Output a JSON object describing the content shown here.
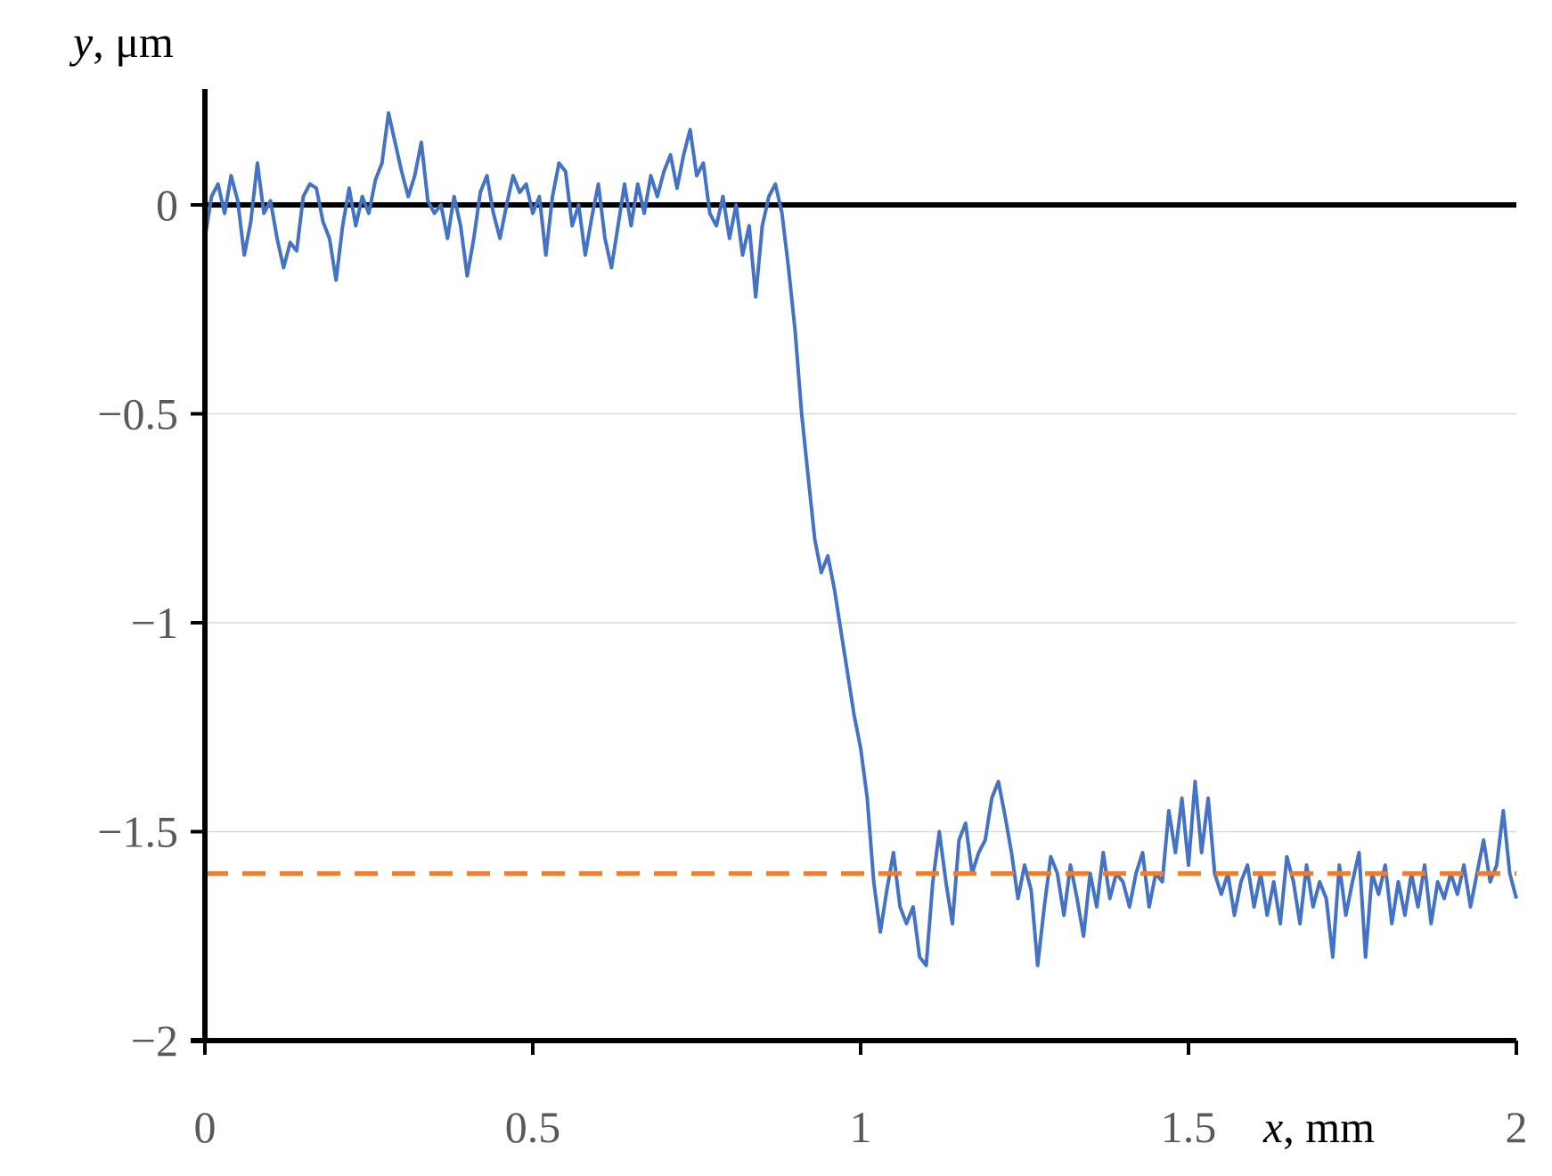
{
  "chart_data": {
    "type": "line",
    "xlabel": {
      "var": "x",
      "unit": ", mm"
    },
    "ylabel": {
      "var": "y",
      "unit": ", μm"
    },
    "xlim": [
      0,
      2
    ],
    "ylim": [
      -2,
      0.3
    ],
    "x_ticks": [
      {
        "value": 0,
        "label": "0"
      },
      {
        "value": 0.5,
        "label": "0.5"
      },
      {
        "value": 1,
        "label": "1"
      },
      {
        "value": 1.5,
        "label": "1.5"
      },
      {
        "value": 2,
        "label": "2"
      }
    ],
    "y_ticks": [
      {
        "value": 0,
        "label": "0"
      },
      {
        "value": -0.5,
        "label": "−0.5"
      },
      {
        "value": -1,
        "label": "−1"
      },
      {
        "value": -1.5,
        "label": "−1.5"
      },
      {
        "value": -2,
        "label": "−2"
      }
    ],
    "grid": {
      "horizontal": true,
      "values": [
        -0.5,
        -1,
        -1.5
      ],
      "color": "#d9d9d9"
    },
    "reference_lines": [
      {
        "y": 0,
        "style": "solid",
        "color": "#000000"
      },
      {
        "y": -1.6,
        "style": "dashed",
        "color": "#ed7d31"
      }
    ],
    "series": [
      {
        "color": "#4472c4",
        "points": [
          [
            0,
            -0.08
          ],
          [
            0.01,
            0.02
          ],
          [
            0.02,
            0.05
          ],
          [
            0.03,
            -0.02
          ],
          [
            0.04,
            0.07
          ],
          [
            0.05,
            0.01
          ],
          [
            0.06,
            -0.12
          ],
          [
            0.07,
            -0.04
          ],
          [
            0.08,
            0.1
          ],
          [
            0.09,
            -0.02
          ],
          [
            0.1,
            0.01
          ],
          [
            0.11,
            -0.08
          ],
          [
            0.12,
            -0.15
          ],
          [
            0.13,
            -0.09
          ],
          [
            0.14,
            -0.11
          ],
          [
            0.15,
            0.02
          ],
          [
            0.16,
            0.05
          ],
          [
            0.17,
            0.04
          ],
          [
            0.18,
            -0.04
          ],
          [
            0.19,
            -0.08
          ],
          [
            0.2,
            -0.18
          ],
          [
            0.21,
            -0.05
          ],
          [
            0.22,
            0.04
          ],
          [
            0.23,
            -0.05
          ],
          [
            0.24,
            0.02
          ],
          [
            0.25,
            -0.02
          ],
          [
            0.26,
            0.06
          ],
          [
            0.27,
            0.1
          ],
          [
            0.28,
            0.22
          ],
          [
            0.29,
            0.15
          ],
          [
            0.3,
            0.08
          ],
          [
            0.31,
            0.02
          ],
          [
            0.32,
            0.07
          ],
          [
            0.33,
            0.15
          ],
          [
            0.34,
            0.01
          ],
          [
            0.35,
            -0.02
          ],
          [
            0.36,
            0.0
          ],
          [
            0.37,
            -0.08
          ],
          [
            0.38,
            0.02
          ],
          [
            0.39,
            -0.05
          ],
          [
            0.4,
            -0.17
          ],
          [
            0.41,
            -0.08
          ],
          [
            0.42,
            0.03
          ],
          [
            0.43,
            0.07
          ],
          [
            0.44,
            -0.02
          ],
          [
            0.45,
            -0.08
          ],
          [
            0.46,
            0.0
          ],
          [
            0.47,
            0.07
          ],
          [
            0.48,
            0.03
          ],
          [
            0.49,
            0.05
          ],
          [
            0.5,
            -0.02
          ],
          [
            0.51,
            0.02
          ],
          [
            0.52,
            -0.12
          ],
          [
            0.53,
            0.02
          ],
          [
            0.54,
            0.1
          ],
          [
            0.55,
            0.08
          ],
          [
            0.56,
            -0.05
          ],
          [
            0.57,
            0.0
          ],
          [
            0.58,
            -0.12
          ],
          [
            0.59,
            -0.03
          ],
          [
            0.6,
            0.05
          ],
          [
            0.61,
            -0.08
          ],
          [
            0.62,
            -0.15
          ],
          [
            0.63,
            -0.05
          ],
          [
            0.64,
            0.05
          ],
          [
            0.65,
            -0.05
          ],
          [
            0.66,
            0.05
          ],
          [
            0.67,
            -0.02
          ],
          [
            0.68,
            0.07
          ],
          [
            0.69,
            0.02
          ],
          [
            0.7,
            0.08
          ],
          [
            0.71,
            0.12
          ],
          [
            0.72,
            0.04
          ],
          [
            0.73,
            0.12
          ],
          [
            0.74,
            0.18
          ],
          [
            0.75,
            0.07
          ],
          [
            0.76,
            0.1
          ],
          [
            0.77,
            -0.02
          ],
          [
            0.78,
            -0.05
          ],
          [
            0.79,
            0.02
          ],
          [
            0.8,
            -0.08
          ],
          [
            0.81,
            0.0
          ],
          [
            0.82,
            -0.12
          ],
          [
            0.83,
            -0.05
          ],
          [
            0.84,
            -0.22
          ],
          [
            0.85,
            -0.05
          ],
          [
            0.86,
            0.02
          ],
          [
            0.87,
            0.05
          ],
          [
            0.88,
            -0.02
          ],
          [
            0.89,
            -0.15
          ],
          [
            0.9,
            -0.3
          ],
          [
            0.91,
            -0.5
          ],
          [
            0.92,
            -0.65
          ],
          [
            0.93,
            -0.8
          ],
          [
            0.94,
            -0.88
          ],
          [
            0.95,
            -0.84
          ],
          [
            0.96,
            -0.92
          ],
          [
            0.97,
            -1.02
          ],
          [
            0.98,
            -1.12
          ],
          [
            0.99,
            -1.22
          ],
          [
            1.0,
            -1.3
          ],
          [
            1.01,
            -1.42
          ],
          [
            1.02,
            -1.62
          ],
          [
            1.03,
            -1.74
          ],
          [
            1.04,
            -1.64
          ],
          [
            1.05,
            -1.55
          ],
          [
            1.06,
            -1.68
          ],
          [
            1.07,
            -1.72
          ],
          [
            1.08,
            -1.68
          ],
          [
            1.09,
            -1.8
          ],
          [
            1.1,
            -1.82
          ],
          [
            1.11,
            -1.62
          ],
          [
            1.12,
            -1.5
          ],
          [
            1.13,
            -1.62
          ],
          [
            1.14,
            -1.72
          ],
          [
            1.15,
            -1.52
          ],
          [
            1.16,
            -1.48
          ],
          [
            1.17,
            -1.6
          ],
          [
            1.18,
            -1.55
          ],
          [
            1.19,
            -1.52
          ],
          [
            1.2,
            -1.42
          ],
          [
            1.21,
            -1.38
          ],
          [
            1.22,
            -1.46
          ],
          [
            1.23,
            -1.55
          ],
          [
            1.24,
            -1.66
          ],
          [
            1.25,
            -1.58
          ],
          [
            1.26,
            -1.64
          ],
          [
            1.27,
            -1.82
          ],
          [
            1.28,
            -1.68
          ],
          [
            1.29,
            -1.56
          ],
          [
            1.3,
            -1.6
          ],
          [
            1.31,
            -1.7
          ],
          [
            1.32,
            -1.58
          ],
          [
            1.33,
            -1.66
          ],
          [
            1.34,
            -1.75
          ],
          [
            1.35,
            -1.6
          ],
          [
            1.36,
            -1.68
          ],
          [
            1.37,
            -1.55
          ],
          [
            1.38,
            -1.66
          ],
          [
            1.39,
            -1.6
          ],
          [
            1.4,
            -1.62
          ],
          [
            1.41,
            -1.68
          ],
          [
            1.42,
            -1.6
          ],
          [
            1.43,
            -1.55
          ],
          [
            1.44,
            -1.68
          ],
          [
            1.45,
            -1.6
          ],
          [
            1.46,
            -1.62
          ],
          [
            1.47,
            -1.45
          ],
          [
            1.48,
            -1.55
          ],
          [
            1.49,
            -1.42
          ],
          [
            1.5,
            -1.58
          ],
          [
            1.51,
            -1.38
          ],
          [
            1.52,
            -1.55
          ],
          [
            1.53,
            -1.42
          ],
          [
            1.54,
            -1.6
          ],
          [
            1.55,
            -1.65
          ],
          [
            1.56,
            -1.6
          ],
          [
            1.57,
            -1.7
          ],
          [
            1.58,
            -1.62
          ],
          [
            1.59,
            -1.58
          ],
          [
            1.6,
            -1.68
          ],
          [
            1.61,
            -1.6
          ],
          [
            1.62,
            -1.7
          ],
          [
            1.63,
            -1.62
          ],
          [
            1.64,
            -1.72
          ],
          [
            1.65,
            -1.56
          ],
          [
            1.66,
            -1.62
          ],
          [
            1.67,
            -1.72
          ],
          [
            1.68,
            -1.58
          ],
          [
            1.69,
            -1.68
          ],
          [
            1.7,
            -1.62
          ],
          [
            1.71,
            -1.66
          ],
          [
            1.72,
            -1.8
          ],
          [
            1.73,
            -1.58
          ],
          [
            1.74,
            -1.7
          ],
          [
            1.75,
            -1.62
          ],
          [
            1.76,
            -1.55
          ],
          [
            1.77,
            -1.8
          ],
          [
            1.78,
            -1.6
          ],
          [
            1.79,
            -1.65
          ],
          [
            1.8,
            -1.58
          ],
          [
            1.81,
            -1.72
          ],
          [
            1.82,
            -1.62
          ],
          [
            1.83,
            -1.7
          ],
          [
            1.84,
            -1.6
          ],
          [
            1.85,
            -1.68
          ],
          [
            1.86,
            -1.58
          ],
          [
            1.87,
            -1.72
          ],
          [
            1.88,
            -1.62
          ],
          [
            1.89,
            -1.66
          ],
          [
            1.9,
            -1.6
          ],
          [
            1.91,
            -1.65
          ],
          [
            1.92,
            -1.58
          ],
          [
            1.93,
            -1.68
          ],
          [
            1.94,
            -1.6
          ],
          [
            1.95,
            -1.52
          ],
          [
            1.96,
            -1.62
          ],
          [
            1.97,
            -1.58
          ],
          [
            1.98,
            -1.45
          ],
          [
            1.99,
            -1.6
          ],
          [
            2.0,
            -1.66
          ]
        ]
      }
    ]
  }
}
